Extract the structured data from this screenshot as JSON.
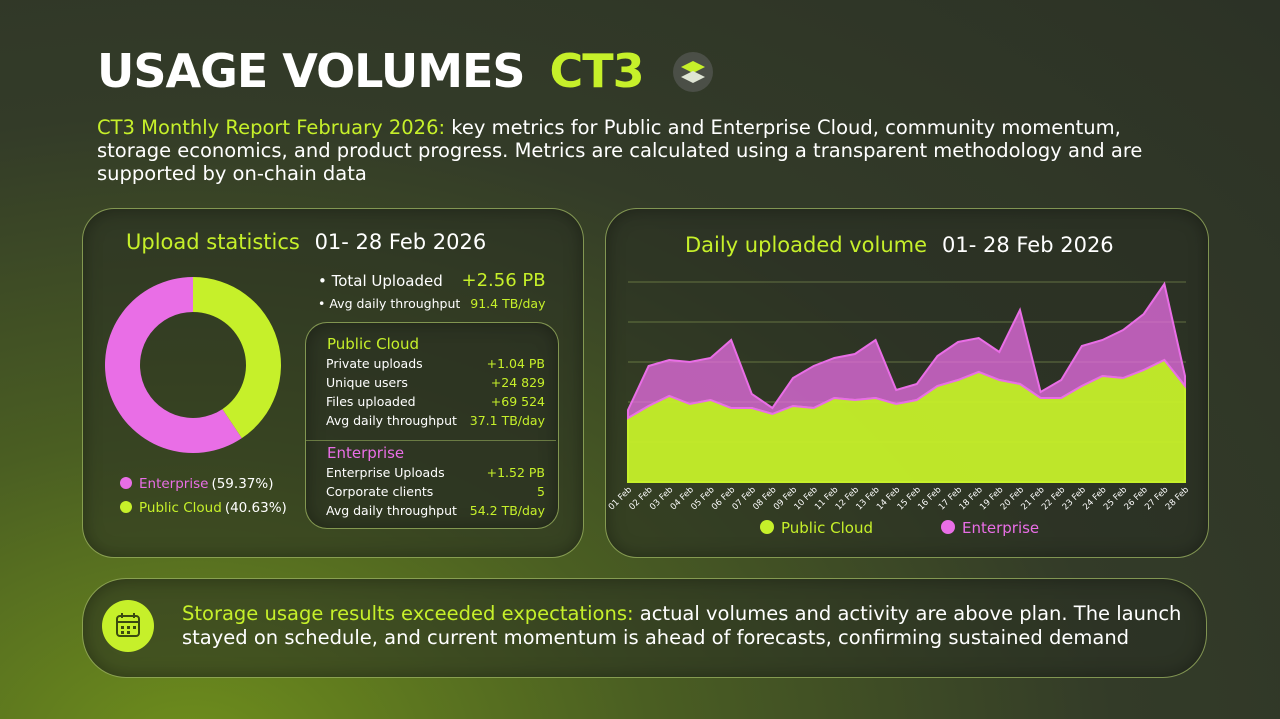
{
  "header": {
    "title": "USAGE VOLUMES",
    "brand": "CT3",
    "intro_highlight": "CT3 Monthly Report February 2026:",
    "intro": "key metrics for Public and Enterprise Cloud, community momentum, storage economics, and product progress. Metrics are calculated using a transparent methodology and are supported by on-chain data"
  },
  "upload_stats": {
    "title": "Upload statistics",
    "period": "01- 28 Feb 2026",
    "total_label": "Total Uploaded",
    "total_value": "+2.56 PB",
    "avg_label": "Avg daily throughput",
    "avg_value": "91.4 TB/day",
    "public_cloud": {
      "title": "Public  Cloud",
      "rows": [
        [
          "Private uploads",
          "+1.04 PB"
        ],
        [
          "Unique users",
          "+24 829"
        ],
        [
          "Files uploaded",
          "+69 524"
        ],
        [
          "Avg daily throughput",
          "37.1 TB/day"
        ]
      ]
    },
    "enterprise": {
      "title": "Enterprise",
      "rows": [
        [
          "Enterprise Uploads",
          "+1.52 PB"
        ],
        [
          "Corporate clients",
          "5"
        ],
        [
          "Avg daily throughput",
          "54.2 TB/day"
        ]
      ]
    }
  },
  "chart_data": [
    {
      "type": "pie",
      "categories": [
        "Enterprise",
        "Public  Cloud"
      ],
      "values": [
        59.37,
        40.63
      ],
      "value_labels": [
        "(59.37%)",
        "(40.63%)"
      ],
      "colors": [
        "#e96ee6",
        "#c6f02a"
      ]
    },
    {
      "type": "area",
      "stacked": true,
      "title": "Daily uploaded volume",
      "subtitle": "01- 28 Feb 2026",
      "categories": [
        "01 Feb",
        "02 Feb",
        "03 Feb",
        "04 Feb",
        "05 Feb",
        "06 Feb",
        "07 Feb",
        "08 Feb",
        "09 Feb",
        "10 Feb",
        "11 Feb",
        "12 Feb",
        "13 Feb",
        "14 Feb",
        "15 Feb",
        "16 Feb",
        "17 Feb",
        "18 Feb",
        "19 Feb",
        "20 Feb",
        "21 Feb",
        "22 Feb",
        "23 Feb",
        "24 Feb",
        "25 Feb",
        "26 Feb",
        "27 Feb",
        "28 Feb"
      ],
      "ylim": [
        0,
        100
      ],
      "series": [
        {
          "name": "Public  Cloud",
          "color": "#c6f02a",
          "values": [
            32,
            38,
            43,
            39,
            41,
            37,
            37,
            34,
            38,
            37,
            42,
            41,
            42,
            39,
            41,
            48,
            51,
            55,
            51,
            49,
            42,
            42,
            48,
            53,
            52,
            56,
            61,
            48
          ]
        },
        {
          "name": "Enterprise",
          "color": "#e96ee6",
          "values": [
            4,
            20,
            18,
            21,
            21,
            34,
            7,
            3,
            14,
            21,
            20,
            23,
            29,
            7,
            8,
            15,
            19,
            17,
            14,
            37,
            3,
            9,
            20,
            18,
            24,
            28,
            38,
            5
          ]
        }
      ]
    }
  ],
  "footer": {
    "highlight": "Storage usage results exceeded expectations:",
    "text": "actual volumes and activity are above plan. The launch stayed on schedule, and current momentum is ahead of forecasts, confirming sustained demand"
  }
}
